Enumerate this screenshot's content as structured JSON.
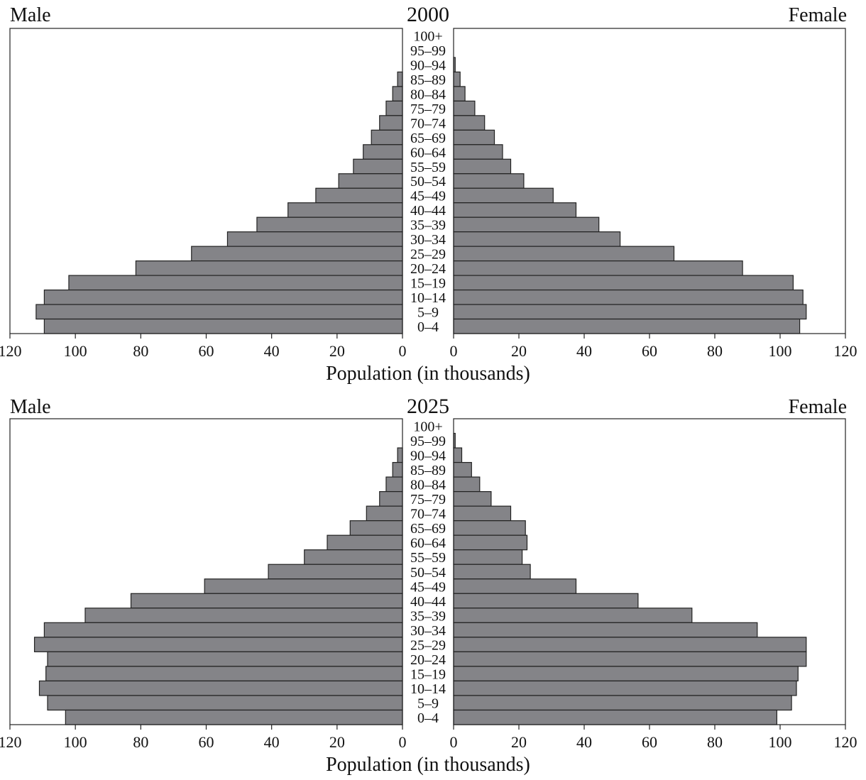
{
  "colors": {
    "bar_fill": "#848488",
    "stroke": "#222222",
    "background": "#ffffff"
  },
  "chart_data": [
    {
      "type": "bar",
      "title": "2000",
      "left_label": "Male",
      "right_label": "Female",
      "xlabel": "Population (in thousands)",
      "xlim": [
        0,
        120
      ],
      "xticks": [
        0,
        20,
        40,
        60,
        80,
        100,
        120
      ],
      "categories": [
        "100+",
        "95–99",
        "90–94",
        "85–89",
        "80–84",
        "75–79",
        "70–74",
        "65–69",
        "60–64",
        "55–59",
        "50–54",
        "45–49",
        "40–44",
        "35–39",
        "30–34",
        "25–29",
        "20–24",
        "15–19",
        "10–14",
        "5–9",
        "0–4"
      ],
      "series": [
        {
          "name": "Male",
          "values": [
            0,
            0,
            0,
            1.5,
            3,
            5,
            7,
            9.5,
            12,
            15,
            19.5,
            26.5,
            35,
            44.5,
            53.5,
            64.5,
            81.5,
            102,
            109.5,
            112,
            109.5
          ]
        },
        {
          "name": "Female",
          "values": [
            0,
            0,
            0.5,
            2,
            3.5,
            6.5,
            9.5,
            12.5,
            15,
            17.5,
            21.5,
            30.5,
            37.5,
            44.5,
            51,
            67.5,
            88.5,
            104,
            107,
            108,
            106
          ]
        }
      ]
    },
    {
      "type": "bar",
      "title": "2025",
      "left_label": "Male",
      "right_label": "Female",
      "xlabel": "Population (in thousands)",
      "xlim": [
        0,
        120
      ],
      "xticks": [
        0,
        20,
        40,
        60,
        80,
        100,
        120
      ],
      "categories": [
        "100+",
        "95–99",
        "90–94",
        "85–89",
        "80–84",
        "75–79",
        "70–74",
        "65–69",
        "60–64",
        "55–59",
        "50–54",
        "45–49",
        "40–44",
        "35–39",
        "30–34",
        "25–29",
        "20–24",
        "15–19",
        "10–14",
        "5–9",
        "0–4"
      ],
      "series": [
        {
          "name": "Male",
          "values": [
            0,
            0,
            1.5,
            3,
            5,
            7,
            11,
            16,
            23,
            30,
            41,
            60.5,
            83,
            97,
            109.5,
            112.5,
            108.5,
            109,
            111,
            108.5,
            103
          ]
        },
        {
          "name": "Female",
          "values": [
            0,
            0.5,
            2.5,
            5.5,
            8,
            11.5,
            17.5,
            22,
            22.5,
            21,
            23.5,
            37.5,
            56.5,
            73,
            93,
            108,
            108,
            105.5,
            105,
            103.5,
            99
          ]
        }
      ]
    }
  ]
}
